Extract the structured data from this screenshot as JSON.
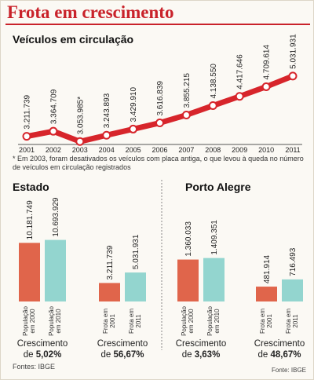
{
  "header": {
    "title": "Frota em crescimento"
  },
  "chart_data": [
    {
      "type": "line",
      "title": "Veículos em circulação",
      "categories": [
        "2001",
        "2002",
        "2003",
        "2004",
        "2005",
        "2006",
        "2007",
        "2008",
        "2009",
        "2010",
        "2011"
      ],
      "values": [
        3211739,
        3364709,
        3053985,
        3243893,
        3429910,
        3616839,
        3855215,
        4138550,
        4417646,
        4709614,
        5031931
      ],
      "value_labels": [
        "3.211.739",
        "3.364.709",
        "3.053.985*",
        "3.243.893",
        "3.429.910",
        "3.616.839",
        "3.855.215",
        "4.138.550",
        "4.417.646",
        "4.709.614",
        "5.031.931"
      ],
      "color": "#d7252b",
      "ylim": [
        2800000,
        6000000
      ],
      "note": "* Em 2003, foram desativados os veículos com placa antiga, o que levou à queda no número de veículos em circulação registrados"
    },
    {
      "type": "bar",
      "title": "Estado",
      "categories": [
        "População em 2000",
        "População em 2010"
      ],
      "values": [
        10181749,
        10693929
      ],
      "value_labels": [
        "10.181.749",
        "10.693.929"
      ],
      "colors": [
        "#e0654b",
        "#93d5cf"
      ],
      "ylim": [
        0,
        15000000
      ],
      "growth_label": "Crescimento de",
      "growth": "5,02%"
    },
    {
      "type": "bar",
      "categories": [
        "Frota em 2001",
        "Frota em 2011"
      ],
      "values": [
        3211739,
        5031931
      ],
      "value_labels": [
        "3.211.739",
        "5.031.931"
      ],
      "colors": [
        "#e0654b",
        "#93d5cf"
      ],
      "ylim": [
        0,
        15000000
      ],
      "growth_label": "Crescimento de",
      "growth": "56,67%"
    },
    {
      "type": "bar",
      "title": "Porto Alegre",
      "categories": [
        "População em 2000",
        "População em 2010"
      ],
      "values": [
        1360033,
        1409351
      ],
      "value_labels": [
        "1.360.033",
        "1.409.351"
      ],
      "colors": [
        "#e0654b",
        "#93d5cf"
      ],
      "ylim": [
        0,
        2800000
      ],
      "growth_label": "Crescimento de",
      "growth": "3,63%"
    },
    {
      "type": "bar",
      "categories": [
        "Frota em 2001",
        "Frota em 2011"
      ],
      "values": [
        481914,
        716493
      ],
      "value_labels": [
        "481.914",
        "716.493"
      ],
      "colors": [
        "#e0654b",
        "#93d5cf"
      ],
      "ylim": [
        0,
        2800000
      ],
      "growth_label": "Crescimento de",
      "growth": "48,67%"
    }
  ],
  "sources": [
    "Fontes: IBGE",
    "Fonte: IBGE"
  ]
}
